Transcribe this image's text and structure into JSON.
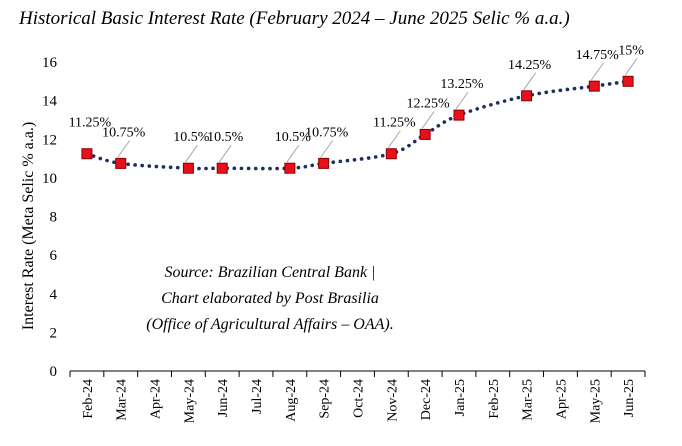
{
  "chart_data": {
    "type": "line",
    "title": "Historical Basic Interest Rate (February 2024 – June 2025 Selic % a.a.)",
    "ylabel": "Interest Rate (Meta Selic % a.a.)",
    "xlabel": "",
    "ylim": [
      0,
      16
    ],
    "yticks": [
      0,
      2,
      4,
      6,
      8,
      10,
      12,
      14,
      16
    ],
    "grid": false,
    "categories": [
      "Feb-24",
      "Mar-24",
      "Apr-24",
      "May-24",
      "Jun-24",
      "Jul-24",
      "Aug-24",
      "Sep-24",
      "Oct-24",
      "Nov-24",
      "Dec-24",
      "Jan-25",
      "Feb-25",
      "Mar-25",
      "Apr-25",
      "May-25",
      "Jun-25"
    ],
    "points": [
      {
        "x": "Feb-24",
        "y": 11.25,
        "label": "11.25%"
      },
      {
        "x": "Mar-24",
        "y": 10.75,
        "label": "10.75%"
      },
      {
        "x": "May-24",
        "y": 10.5,
        "label": "10.5%"
      },
      {
        "x": "Jun-24",
        "y": 10.5,
        "label": "10.5%"
      },
      {
        "x": "Aug-24",
        "y": 10.5,
        "label": "10.5%"
      },
      {
        "x": "Sep-24",
        "y": 10.75,
        "label": "10.75%"
      },
      {
        "x": "Nov-24",
        "y": 11.25,
        "label": "11.25%"
      },
      {
        "x": "Dec-24",
        "y": 12.25,
        "label": "12.25%"
      },
      {
        "x": "Jan-25",
        "y": 13.25,
        "label": "13.25%"
      },
      {
        "x": "Mar-25",
        "y": 14.25,
        "label": "14.25%"
      },
      {
        "x": "May-25",
        "y": 14.75,
        "label": "14.75%"
      },
      {
        "x": "Jun-25",
        "y": 15,
        "label": "15%"
      }
    ],
    "line_color": "#1f2f5c",
    "marker_color": "#e8101a",
    "marker_edge_color": "#8b0000",
    "note_lines": [
      "Source: Brazilian Central Bank |",
      "Chart elaborated by Post Brasilia",
      "(Office of Agricultural Affairs – OAA)."
    ]
  }
}
